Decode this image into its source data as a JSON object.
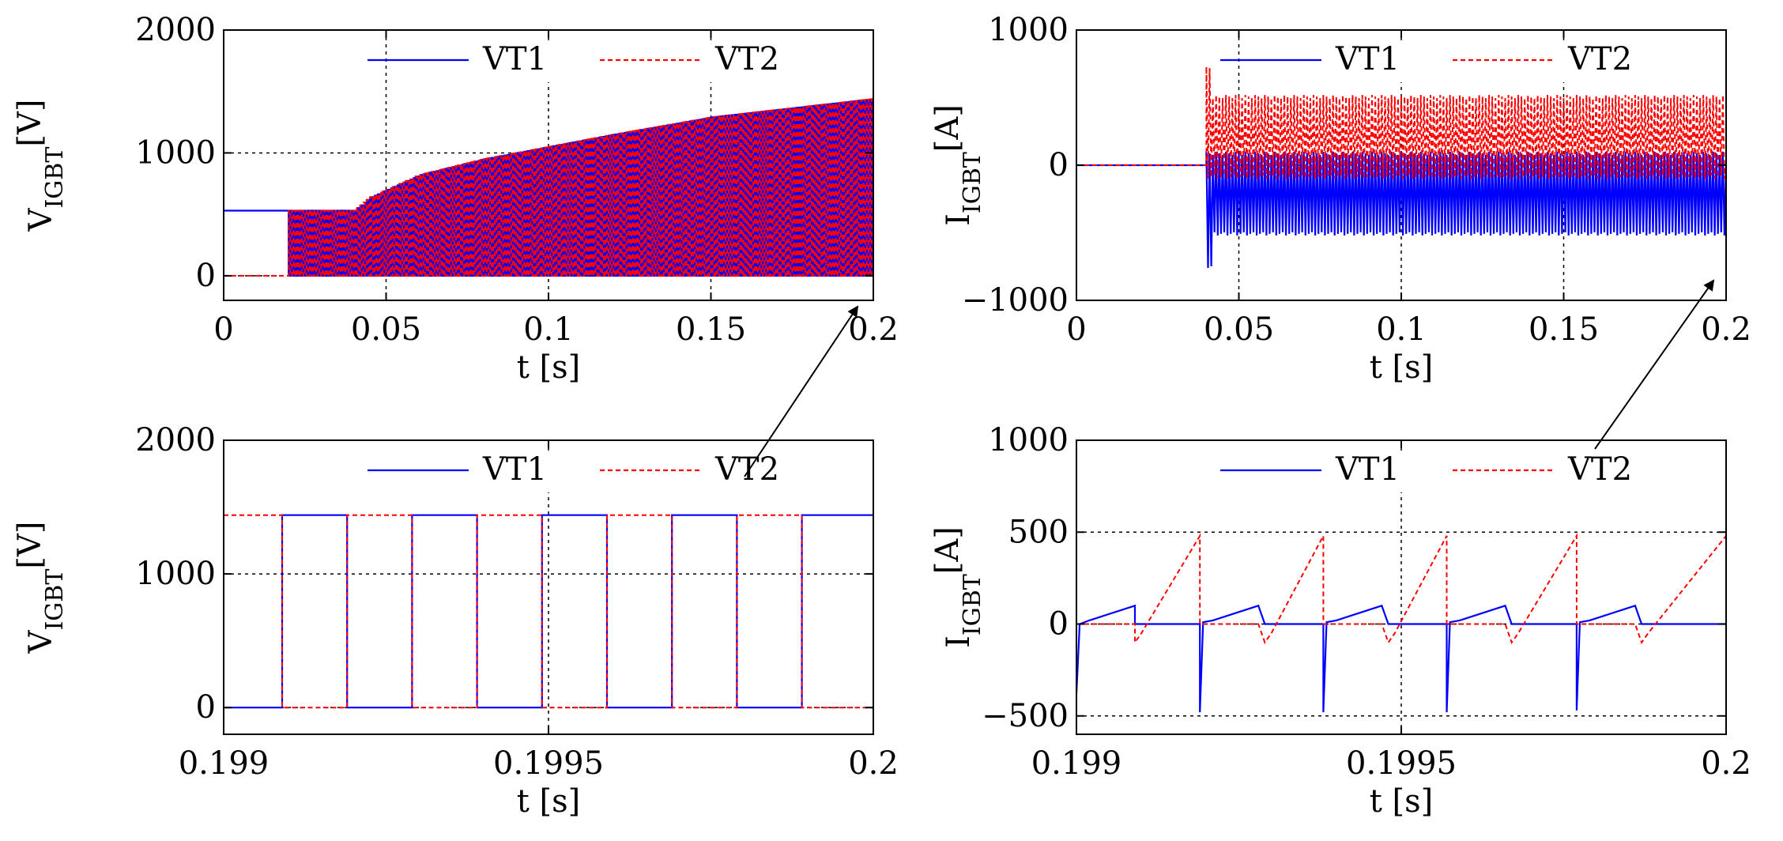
{
  "chart_data": [
    {
      "id": "tl",
      "type": "line",
      "title": "",
      "xlabel": "t [s]",
      "ylabel": "V",
      "ylabel_sub": "IGBT",
      "ylabel_unit": "[V]",
      "xlim": [
        0,
        0.2
      ],
      "ylim": [
        -200,
        2000
      ],
      "xticks": [
        0,
        0.05,
        0.1,
        0.15,
        0.2
      ],
      "xtick_labels": [
        "0",
        "0.05",
        "0.1",
        "0.15",
        "0.2"
      ],
      "yticks": [
        0,
        1000,
        2000
      ],
      "ytick_labels": [
        "0",
        "1000",
        "2000"
      ],
      "grid": true,
      "legend": "top-right",
      "series": [
        {
          "name": "VT1",
          "color": "#0000ff",
          "style": "solid",
          "shape": "switching_voltage",
          "values_desc": "square wave between 0 V and envelope",
          "envelope": {
            "x": [
              0,
              0.02,
              0.04,
              0.045,
              0.06,
              0.08,
              0.1,
              0.12,
              0.15,
              0.2
            ],
            "y": [
              530,
              530,
              530,
              640,
              820,
              950,
              1050,
              1150,
              1290,
              1440
            ]
          },
          "switching_start": 0.02
        },
        {
          "name": "VT2",
          "color": "#ff0000",
          "style": "dashed",
          "shape": "switching_voltage",
          "values_desc": "complementary square wave",
          "envelope": {
            "x": [
              0,
              0.02,
              0.04,
              0.045,
              0.06,
              0.08,
              0.1,
              0.12,
              0.15,
              0.2
            ],
            "y": [
              0,
              530,
              530,
              640,
              820,
              950,
              1050,
              1150,
              1290,
              1440
            ]
          },
          "switching_start": 0.02
        }
      ]
    },
    {
      "id": "tr",
      "type": "line",
      "title": "",
      "xlabel": "t [s]",
      "ylabel": "I",
      "ylabel_sub": "IGBT",
      "ylabel_unit": "[A]",
      "xlim": [
        0,
        0.2
      ],
      "ylim": [
        -1000,
        1000
      ],
      "xticks": [
        0,
        0.05,
        0.1,
        0.15,
        0.2
      ],
      "xtick_labels": [
        "0",
        "0.05",
        "0.1",
        "0.15",
        "0.2"
      ],
      "yticks": [
        -1000,
        0,
        1000
      ],
      "ytick_labels": [
        "−1000",
        "0",
        "1000"
      ],
      "grid": true,
      "legend": "top-right",
      "series": [
        {
          "name": "VT1",
          "color": "#0000ff",
          "style": "solid",
          "start": 0.04,
          "steady_min": -520,
          "steady_max": 100,
          "peak_min": -760
        },
        {
          "name": "VT2",
          "color": "#ff0000",
          "style": "dashed",
          "start": 0.04,
          "steady_min": -100,
          "steady_max": 520,
          "peak_max": 730
        }
      ]
    },
    {
      "id": "bl",
      "type": "line",
      "title": "",
      "xlabel": "t [s]",
      "ylabel": "V",
      "ylabel_sub": "IGBT",
      "ylabel_unit": "[V]",
      "xlim": [
        0.199,
        0.2
      ],
      "ylim": [
        -200,
        2000
      ],
      "xticks": [
        0.199,
        0.1995,
        0.2
      ],
      "xtick_labels": [
        "0.199",
        "0.1995",
        "0.2"
      ],
      "yticks": [
        0,
        1000,
        2000
      ],
      "ytick_labels": [
        "0",
        "1000",
        "2000"
      ],
      "grid": true,
      "legend": "top-right",
      "series": [
        {
          "name": "VT1",
          "color": "#0000ff",
          "style": "solid",
          "x": [
            0.199,
            0.19909,
            0.19909,
            0.19919,
            0.19919,
            0.19929,
            0.19929,
            0.19939,
            0.19939,
            0.19949,
            0.19949,
            0.19959,
            0.19959,
            0.19969,
            0.19969,
            0.19979,
            0.19979,
            0.19989,
            0.19989,
            0.2
          ],
          "y": [
            0,
            0,
            1440,
            1440,
            0,
            0,
            1440,
            1440,
            0,
            0,
            1440,
            1440,
            0,
            0,
            1440,
            1440,
            0,
            0,
            1440,
            1440
          ]
        },
        {
          "name": "VT2",
          "color": "#ff0000",
          "style": "dashed",
          "x": [
            0.199,
            0.19909,
            0.19909,
            0.19919,
            0.19919,
            0.19929,
            0.19929,
            0.19939,
            0.19939,
            0.19949,
            0.19949,
            0.19959,
            0.19959,
            0.19969,
            0.19969,
            0.19979,
            0.19979,
            0.19989,
            0.19989,
            0.2
          ],
          "y": [
            1440,
            1440,
            0,
            0,
            1440,
            1440,
            0,
            0,
            1440,
            1440,
            0,
            0,
            1440,
            1440,
            0,
            0,
            1440,
            1440,
            0,
            0
          ]
        }
      ]
    },
    {
      "id": "br",
      "type": "line",
      "title": "",
      "xlabel": "t [s]",
      "ylabel": "I",
      "ylabel_sub": "IGBT",
      "ylabel_unit": "[A]",
      "xlim": [
        0.199,
        0.2
      ],
      "ylim": [
        -600,
        1000
      ],
      "xticks": [
        0.199,
        0.1995,
        0.2
      ],
      "xtick_labels": [
        "0.199",
        "0.1995",
        "0.2"
      ],
      "yticks": [
        -500,
        0,
        500,
        1000
      ],
      "ytick_labels": [
        "−500",
        "0",
        "500",
        "1000"
      ],
      "grid": true,
      "legend": "top-right",
      "series": [
        {
          "name": "VT1",
          "color": "#0000ff",
          "style": "solid",
          "x": [
            0.199,
            0.199005,
            0.19902,
            0.19909,
            0.19909,
            0.19919,
            0.19919,
            0.199195,
            0.19921,
            0.19928,
            0.19929,
            0.19938,
            0.19938,
            0.199385,
            0.1994,
            0.19947,
            0.19948,
            0.19957,
            0.19957,
            0.199575,
            0.19959,
            0.19966,
            0.19967,
            0.19977,
            0.19977,
            0.199775,
            0.19979,
            0.19986,
            0.19987,
            0.2
          ],
          "y": [
            -380,
            0,
            20,
            100,
            0,
            0,
            -480,
            10,
            20,
            100,
            0,
            0,
            -480,
            10,
            20,
            100,
            0,
            0,
            -480,
            10,
            20,
            100,
            0,
            0,
            -470,
            10,
            20,
            100,
            0,
            0
          ]
        },
        {
          "name": "VT2",
          "color": "#ff0000",
          "style": "dashed",
          "x": [
            0.199,
            0.19909,
            0.19909,
            0.1991,
            0.19919,
            0.19919,
            0.19928,
            0.19929,
            0.1993,
            0.19938,
            0.19938,
            0.19947,
            0.19948,
            0.19949,
            0.19957,
            0.19957,
            0.19966,
            0.19967,
            0.19968,
            0.19977,
            0.19977,
            0.19986,
            0.19987,
            0.19988,
            0.2
          ],
          "y": [
            0,
            0,
            -100,
            -50,
            480,
            0,
            0,
            -100,
            -50,
            480,
            0,
            0,
            -100,
            -50,
            480,
            0,
            0,
            -100,
            -50,
            480,
            0,
            0,
            -100,
            -50,
            480
          ]
        }
      ]
    }
  ],
  "arrows": [
    {
      "from_chart": "bl",
      "to_chart": "tl"
    },
    {
      "from_chart": "br",
      "to_chart": "tr"
    }
  ]
}
